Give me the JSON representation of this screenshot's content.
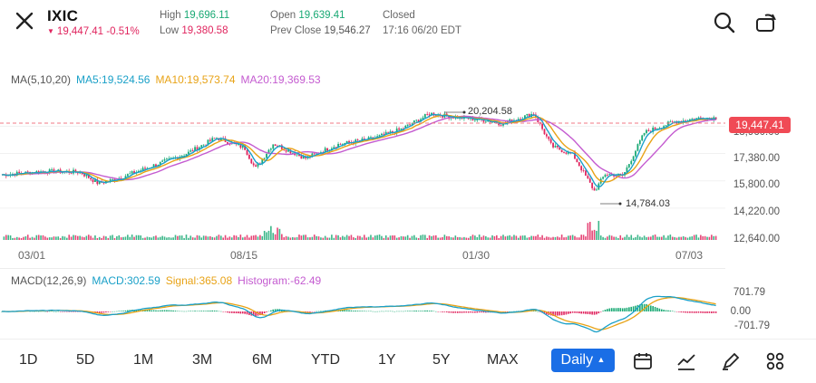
{
  "header": {
    "ticker": "IXIC",
    "price_change": "19,447.41 -0.51%",
    "high_label": "High",
    "high_value": "19,696.11",
    "low_label": "Low",
    "low_value": "19,380.58",
    "open_label": "Open",
    "open_value": "19,639.41",
    "prev_close_label": "Prev Close",
    "prev_close_value": "19,546.27",
    "status": "Closed",
    "timestamp": "17:16 06/20 EDT"
  },
  "indicators": {
    "ma_title": "MA(5,10,20)",
    "ma5": "MA5:19,524.56",
    "ma10": "MA10:19,573.74",
    "ma20": "MA20:19,369.53",
    "macd_title": "MACD(12,26,9)",
    "macd": "MACD:302.59",
    "signal": "Signal:365.08",
    "histogram": "Histogram:-62.49"
  },
  "chart": {
    "price_tag": "19,447.41",
    "high_annotation": "20,204.58",
    "low_annotation": "14,784.03",
    "y_labels": [
      "18,960.00",
      "17,380.00",
      "15,800.00",
      "14,220.00",
      "12,640.00"
    ],
    "x_labels": [
      "03/01",
      "08/15",
      "01/30",
      "07/03"
    ],
    "macd_y_labels": [
      "701.79",
      "0.00",
      "-701.79"
    ]
  },
  "chart_data": {
    "type": "line",
    "x_labels": [
      "03/01",
      "08/15",
      "01/30",
      "07/03"
    ],
    "y_ticks": [
      18960,
      17380,
      15800,
      14220,
      12640
    ],
    "last_price": 19447.41,
    "annotated_high": 20204.58,
    "annotated_low": 14784.03,
    "series": [
      {
        "name": "MA5",
        "color": "#1aa0c8",
        "last": 19524.56
      },
      {
        "name": "MA10",
        "color": "#e8a317",
        "last": 19573.74
      },
      {
        "name": "MA20",
        "color": "#c45bd0",
        "last": 19369.53
      }
    ],
    "macd": {
      "macd": 302.59,
      "signal": 365.08,
      "histogram": -62.49,
      "range": [
        -701.79,
        701.79
      ]
    }
  },
  "timeframes": [
    "1D",
    "5D",
    "1M",
    "3M",
    "6M",
    "YTD",
    "1Y",
    "5Y",
    "MAX"
  ],
  "interval": "Daily",
  "icons": [
    "close-icon",
    "search-icon",
    "rotate-icon",
    "calendar-icon",
    "indicator-icon",
    "draw-icon",
    "grid-icon"
  ],
  "colors": {
    "up": "#19a974",
    "down": "#e0245e",
    "accent": "#1a6ee6"
  }
}
